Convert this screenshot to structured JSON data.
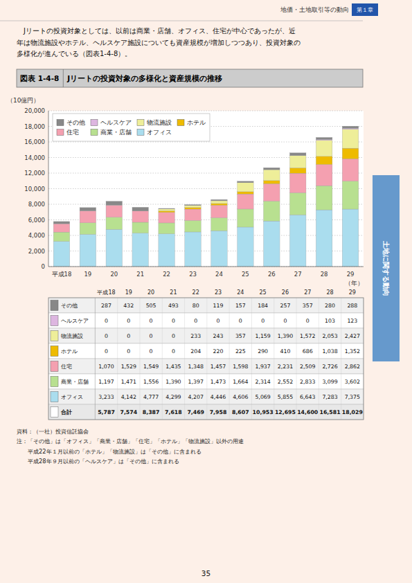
{
  "page_header": "地価・土地取引等の動向",
  "chapter_label": "第１章",
  "intro_text": "　Jリートの投資対象としては、以前は商業・店舗、オフィス、住宅が中心であったが、近\n年は物流施設やホテル、ヘルスケア施設についても資産規模が増加しつつあり、投資対象の\n多様化が進んでいる（図表1-4-8）。",
  "fig_title_label": "図表 1-4-8",
  "chart_data": {
    "type": "bar",
    "stacked": true,
    "title": "Jリートの投資対象の多様化と資産規模の推移",
    "ylabel": "（10億円）",
    "xlabel": "（年）",
    "categories": [
      "平成18",
      "19",
      "20",
      "21",
      "22",
      "23",
      "24",
      "25",
      "26",
      "27",
      "28",
      "29"
    ],
    "series": [
      {
        "name": "オフィス",
        "color": "#aaddee",
        "values": [
          3233,
          4142,
          4777,
          4299,
          4207,
          4446,
          4606,
          5069,
          5855,
          6643,
          7283,
          7375
        ]
      },
      {
        "name": "商業・店舗",
        "color": "#b8e090",
        "values": [
          1197,
          1471,
          1556,
          1390,
          1397,
          1473,
          1664,
          2314,
          2552,
          2833,
          3099,
          3602
        ]
      },
      {
        "name": "住宅",
        "color": "#f4a0b0",
        "values": [
          1070,
          1529,
          1549,
          1435,
          1348,
          1457,
          1598,
          1937,
          2231,
          2509,
          2726,
          2862
        ]
      },
      {
        "name": "ホテル",
        "color": "#eebb00",
        "values": [
          0,
          0,
          0,
          0,
          204,
          220,
          225,
          290,
          410,
          686,
          1038,
          1352
        ]
      },
      {
        "name": "物流施設",
        "color": "#eeee99",
        "values": [
          0,
          0,
          0,
          0,
          233,
          243,
          357,
          1159,
          1390,
          1572,
          2053,
          2427
        ]
      },
      {
        "name": "ヘルスケア",
        "color": "#ddb6e0",
        "values": [
          0,
          0,
          0,
          0,
          0,
          0,
          0,
          0,
          0,
          0,
          103,
          123
        ]
      },
      {
        "name": "その他",
        "color": "#888888",
        "values": [
          287,
          432,
          505,
          493,
          80,
          119,
          157,
          184,
          257,
          357,
          280,
          288
        ]
      }
    ],
    "ylim": [
      0,
      20000
    ],
    "yticks": [
      0,
      {
        "value": 2000,
        "label": "2,000"
      },
      {
        "value": 4000,
        "label": "4,000"
      },
      {
        "value": 6000,
        "label": "6,000"
      },
      {
        "value": 8000,
        "label": "8,000"
      },
      {
        "value": 10000,
        "label": "10,000"
      },
      {
        "value": 12000,
        "label": "12,000"
      },
      {
        "value": 14000,
        "label": "14,000"
      },
      {
        "value": 16000,
        "label": "16,000"
      },
      {
        "value": 18000,
        "label": "18,000"
      },
      {
        "value": 20000,
        "label": "20,000"
      }
    ],
    "grid": true,
    "legend": "upper left"
  },
  "table": {
    "rows": [
      "その他",
      "ヘルスケア",
      "物流施設",
      "ホテル",
      "住宅",
      "商業・店舗",
      "オフィス",
      "合計"
    ],
    "cells": [
      [
        "287",
        "432",
        "505",
        "493",
        "80",
        "119",
        "157",
        "184",
        "257",
        "357",
        "280",
        "288"
      ],
      [
        "0",
        "0",
        "0",
        "0",
        "0",
        "0",
        "0",
        "0",
        "0",
        "0",
        "103",
        "123"
      ],
      [
        "0",
        "0",
        "0",
        "0",
        "233",
        "243",
        "357",
        "1,159",
        "1,390",
        "1,572",
        "2,053",
        "2,427"
      ],
      [
        "0",
        "0",
        "0",
        "0",
        "204",
        "220",
        "225",
        "290",
        "410",
        "686",
        "1,038",
        "1,352"
      ],
      [
        "1,070",
        "1,529",
        "1,549",
        "1,435",
        "1,348",
        "1,457",
        "1,598",
        "1,937",
        "2,231",
        "2,509",
        "2,726",
        "2,862"
      ],
      [
        "1,197",
        "1,471",
        "1,556",
        "1,390",
        "1,397",
        "1,473",
        "1,664",
        "2,314",
        "2,552",
        "2,833",
        "3,099",
        "3,602"
      ],
      [
        "3,233",
        "4,142",
        "4,777",
        "4,299",
        "4,207",
        "4,446",
        "4,606",
        "5,069",
        "5,855",
        "6,643",
        "7,283",
        "7,375"
      ],
      [
        "5,787",
        "7,574",
        "8,387",
        "7,618",
        "7,469",
        "7,958",
        "8,607",
        "10,953",
        "12,695",
        "14,600",
        "16,581",
        "18,029"
      ]
    ]
  },
  "source_text": "資料：（一社）投資信託協会\n注：「その他」は「オフィス」「商業・店舗」「住宅」「ホテル」「物流施設」以外の用途\n　　平成22年１月以前の「ホテル」「物流施設」は「その他」に含まれる\n　　平成28年９月以前の「ヘルスケア」は「その他」に含まれる",
  "page_number": "35",
  "side_label": "土地に関する動向"
}
